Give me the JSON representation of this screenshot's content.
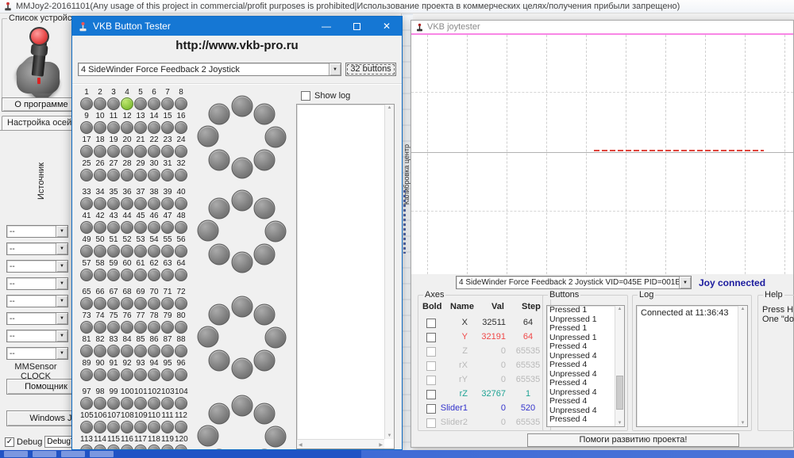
{
  "colors": {
    "titlebar_blue": "#1577d4",
    "pressed_green": "#8cc63f",
    "magenta_line": "#f986e5",
    "red_trace": "#e0453c",
    "status_navy": "#1b1b9e"
  },
  "mmjoy": {
    "title": "MMJoy2-20161101(Any usage of this project in commercial/profit purposes is prohibited|Использование проекта в коммерческих целях/получения прибыли запрещено)",
    "device_group_label": "Список устройств и",
    "about_button": "О программе",
    "tab_axes": "Настройка осей",
    "tab_partial": "Н",
    "source_label": "Источник",
    "axis_selects": [
      "--",
      "--",
      "--",
      "--",
      "--",
      "--",
      "--",
      "--"
    ],
    "sensor_label": "MMSensor CLOCK",
    "helper_button": "Помощник",
    "windows_button": "Windows Jo",
    "debug_label": "Debug",
    "debug_value": "DebugText",
    "calibration_strip": "Калибровка центр"
  },
  "button_tester": {
    "title": "VKB Button Tester",
    "url": "http://www.vkb-pro.ru",
    "device_select": "4 SideWinder Force Feedback 2 Joystick",
    "buttons_count_button": "32 buttons",
    "show_log_label": "Show log",
    "pressed_button": 4,
    "button_groups": [
      [
        [
          1,
          2,
          3,
          4,
          5,
          6,
          7,
          8
        ],
        [
          9,
          10,
          11,
          12,
          13,
          14,
          15,
          16
        ],
        [
          17,
          18,
          19,
          20,
          21,
          22,
          23,
          24
        ],
        [
          25,
          26,
          27,
          28,
          29,
          30,
          31,
          32
        ]
      ],
      [
        [
          33,
          34,
          35,
          36,
          37,
          38,
          39,
          40
        ],
        [
          41,
          42,
          43,
          44,
          45,
          46,
          47,
          48
        ],
        [
          49,
          50,
          51,
          52,
          53,
          54,
          55,
          56
        ],
        [
          57,
          58,
          59,
          60,
          61,
          62,
          63,
          64
        ]
      ],
      [
        [
          65,
          66,
          67,
          68,
          69,
          70,
          71,
          72
        ],
        [
          73,
          74,
          75,
          76,
          77,
          78,
          79,
          80
        ],
        [
          81,
          82,
          83,
          84,
          85,
          86,
          87,
          88
        ],
        [
          89,
          90,
          91,
          92,
          93,
          94,
          95,
          96
        ]
      ],
      [
        [
          97,
          98,
          99,
          100,
          101,
          102,
          103,
          104
        ],
        [
          105,
          106,
          107,
          108,
          109,
          110,
          111,
          112
        ],
        [
          113,
          114,
          115,
          116,
          117,
          118,
          119,
          120
        ]
      ]
    ],
    "hat_cluster_count": 4
  },
  "joytester": {
    "title": "VKB joytester",
    "device_select": "4 SideWinder Force Feedback 2 Joystick VID=045E PID=001B",
    "status": "Joy connected",
    "axes_group": {
      "label": "Axes",
      "headers": [
        "Bold",
        "Name",
        "Val",
        "Step"
      ],
      "rows": [
        {
          "name": "X",
          "val": "32511",
          "step": "64",
          "color": "#303030",
          "dim": false
        },
        {
          "name": "Y",
          "val": "32191",
          "step": "64",
          "color": "#f04848",
          "dim": false
        },
        {
          "name": "Z",
          "val": "0",
          "step": "65535",
          "color": "#b9b9b9",
          "dim": true
        },
        {
          "name": "rX",
          "val": "0",
          "step": "65535",
          "color": "#b9b9b9",
          "dim": true
        },
        {
          "name": "rY",
          "val": "0",
          "step": "65535",
          "color": "#b9b9b9",
          "dim": true
        },
        {
          "name": "rZ",
          "val": "32767",
          "step": "1",
          "color": "#1fa394",
          "dim": false
        },
        {
          "name": "Slider1",
          "val": "0",
          "step": "520",
          "color": "#3333cc",
          "dim": false
        },
        {
          "name": "Slider2",
          "val": "0",
          "step": "65535",
          "color": "#b9b9b9",
          "dim": true
        }
      ]
    },
    "buttons_group": {
      "label": "Buttons",
      "events": [
        "Pressed 1",
        "Unpressed 1",
        "Pressed 1",
        "Unpressed 1",
        "Pressed 4",
        "Unpressed 4",
        "Pressed 4",
        "Unpressed 4",
        "Pressed 4",
        "Unpressed 4",
        "Pressed 4",
        "Unpressed 4",
        "Pressed 4"
      ]
    },
    "log_group": {
      "label": "Log",
      "entries": [
        "Connected at 11:36:43"
      ]
    },
    "help_group": {
      "label": "Help",
      "lines": [
        "Press H key",
        "One \"dot lin"
      ]
    },
    "donate_button": "Помоги развитию проекта!"
  }
}
